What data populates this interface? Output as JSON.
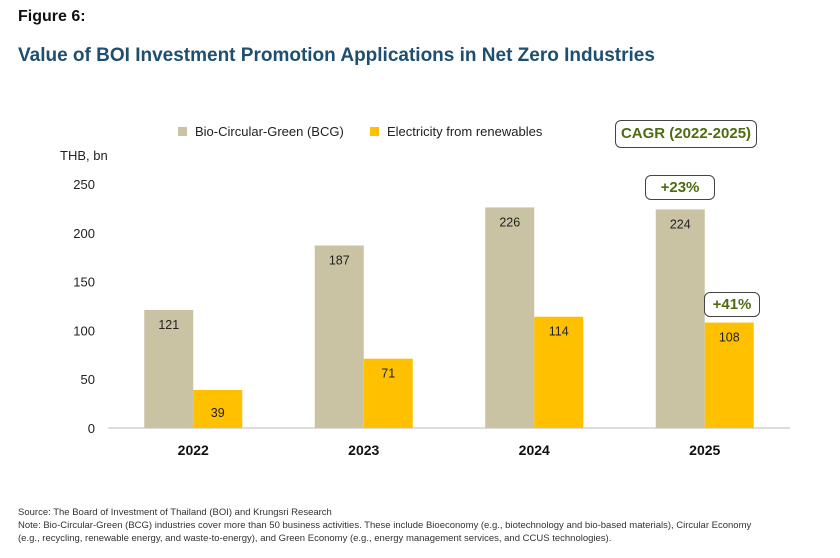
{
  "figure_label": "Figure 6:",
  "title": "Value of BOI Investment Promotion Applications in Net Zero Industries",
  "chart_data": {
    "type": "bar",
    "title": "Value of BOI Investment Promotion Applications in Net Zero Industries",
    "ylabel": "THB, bn",
    "xlabel": "",
    "ylim": [
      0,
      250
    ],
    "yticks": [
      0,
      50,
      100,
      150,
      200,
      250
    ],
    "categories": [
      "2022",
      "2023",
      "2024",
      "2025"
    ],
    "series": [
      {
        "name": "Bio-Circular-Green (BCG)",
        "color": "#c9c3a4",
        "values": [
          121,
          187,
          226,
          224
        ]
      },
      {
        "name": "Electricity from renewables",
        "color": "#ffc000",
        "values": [
          39,
          71,
          114,
          108
        ]
      }
    ],
    "legend": "top",
    "grid": false,
    "annotations": {
      "cagr_label": "CAGR (2022-2025)",
      "bcg_cagr": "+23%",
      "renew_cagr": "+41%"
    }
  },
  "source": "Source: The Board of Investment of Thailand (BOI) and Krungsri Research",
  "note_line1": "Note: Bio-Circular-Green (BCG) industries cover more than 50 business activities. These include Bioeconomy (e.g., biotechnology and bio-based materials), Circular Economy",
  "note_line2": "(e.g., recycling, renewable energy, and waste-to-energy), and Green Economy (e.g., energy management services, and CCUS technologies)."
}
